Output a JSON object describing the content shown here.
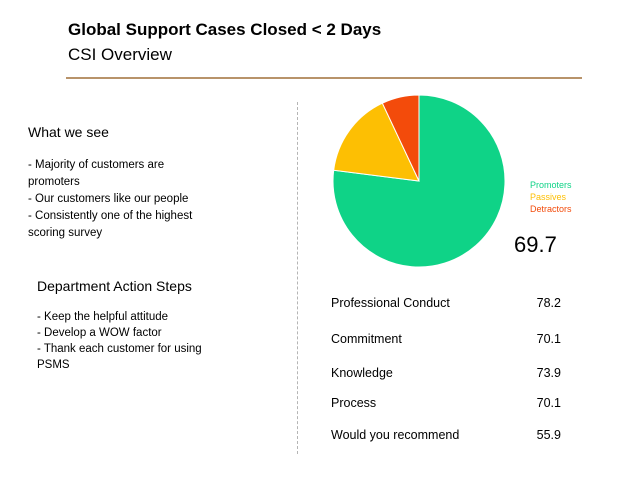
{
  "slide": {
    "title": "Global Support Cases Closed < 2 Days",
    "subtitle": "CSI Overview"
  },
  "what_we_see": {
    "heading": "What we see",
    "lines": [
      "- Majority of customers are",
      "promoters",
      "- Our customers like our people",
      "- Consistently one of the highest",
      "scoring survey"
    ]
  },
  "action_steps": {
    "heading": "Department Action Steps",
    "lines": [
      "- Keep the helpful attitude",
      "- Develop a WOW factor",
      "- Thank each customer for using",
      "PSMS"
    ]
  },
  "legend": {
    "items": [
      {
        "label": "Promoters",
        "color": "#0fd387"
      },
      {
        "label": "Passives",
        "color": "#fdbf03"
      },
      {
        "label": "Detractors",
        "color": "#f34b0b"
      }
    ]
  },
  "score": "69.7",
  "metrics": [
    {
      "label": "Professional Conduct",
      "value": "78.2"
    },
    {
      "label": "Commitment",
      "value": "70.1"
    },
    {
      "label": "Knowledge",
      "value": "73.9"
    },
    {
      "label": "Process",
      "value": "70.1"
    },
    {
      "label": "Would you recommend",
      "value": "55.9"
    }
  ],
  "chart_data": {
    "type": "pie",
    "categories": [
      "Promoters",
      "Passives",
      "Detractors"
    ],
    "values": [
      77,
      16,
      7
    ],
    "colors": [
      "#0fd387",
      "#fdbf03",
      "#f34b0b"
    ],
    "legend": "right"
  }
}
